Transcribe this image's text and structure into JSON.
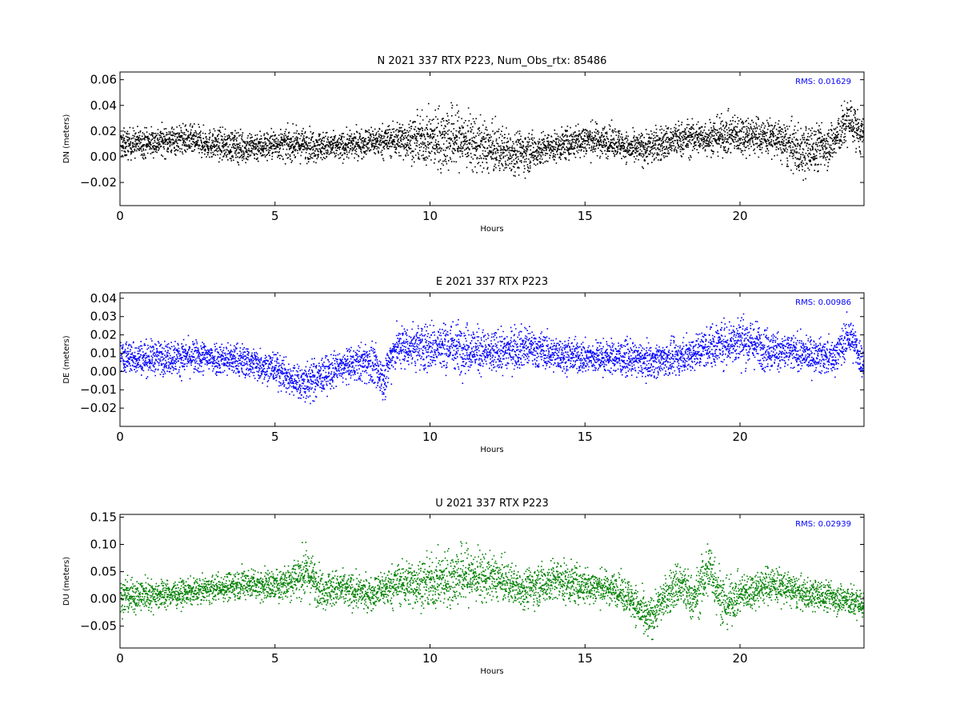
{
  "chart_data": [
    {
      "type": "scatter",
      "title": "N 2021 337 RTX  P223, Num_Obs_rtx: 85486",
      "xlabel": "Hours",
      "ylabel": "DN (meters)",
      "xlim": [
        0,
        24
      ],
      "ylim": [
        -0.038,
        0.066
      ],
      "xticks": [
        0,
        5,
        10,
        15,
        20
      ],
      "xtick_labels": [
        "0",
        "5",
        "10",
        "15",
        "20"
      ],
      "yticks": [
        -0.02,
        0.0,
        0.02,
        0.04,
        0.06
      ],
      "ytick_labels": [
        "−0.02",
        "0.00",
        "0.02",
        "0.04",
        "0.06"
      ],
      "color": "#000000",
      "annotation": "RMS:  0.01629",
      "annotation_color": "#0000ff",
      "legend": "none",
      "grid": false,
      "series": [
        {
          "x": [
            0,
            1,
            2,
            3,
            4,
            5,
            6,
            7,
            8,
            9,
            10,
            10.5,
            11,
            12,
            13,
            14,
            15,
            16,
            16.5,
            17,
            18,
            19,
            20,
            21,
            22,
            23,
            23.5,
            24
          ],
          "center": [
            0.01,
            0.012,
            0.014,
            0.01,
            0.008,
            0.01,
            0.01,
            0.008,
            0.012,
            0.014,
            0.014,
            0.015,
            0.014,
            0.006,
            0.004,
            0.008,
            0.014,
            0.012,
            0.006,
            0.008,
            0.014,
            0.016,
            0.018,
            0.016,
            0.004,
            0.012,
            0.03,
            0.014
          ],
          "spread": [
            0.01,
            0.01,
            0.01,
            0.01,
            0.011,
            0.01,
            0.011,
            0.009,
            0.01,
            0.012,
            0.018,
            0.024,
            0.02,
            0.016,
            0.014,
            0.01,
            0.012,
            0.01,
            0.01,
            0.012,
            0.012,
            0.012,
            0.014,
            0.012,
            0.018,
            0.014,
            0.016,
            0.012
          ]
        }
      ]
    },
    {
      "type": "scatter",
      "title": "E 2021 337 RTX  P223",
      "xlabel": "Hours",
      "ylabel": "DE (meters)",
      "xlim": [
        0,
        24
      ],
      "ylim": [
        -0.03,
        0.043
      ],
      "xticks": [
        0,
        5,
        10,
        15,
        20
      ],
      "xtick_labels": [
        "0",
        "5",
        "10",
        "15",
        "20"
      ],
      "yticks": [
        -0.02,
        -0.01,
        0.0,
        0.01,
        0.02,
        0.03,
        0.04
      ],
      "ytick_labels": [
        "−0.02",
        "−0.01",
        "0.00",
        "0.01",
        "0.02",
        "0.03",
        "0.04"
      ],
      "color": "#0000ff",
      "annotation": "RMS:  0.00986",
      "annotation_color": "#0000ff",
      "legend": "none",
      "grid": false,
      "series": [
        {
          "x": [
            0,
            1,
            2,
            3,
            4,
            5,
            5.5,
            6,
            7,
            7.5,
            8,
            8.5,
            8.8,
            9,
            10,
            11,
            12,
            13,
            14,
            15,
            16,
            17,
            18,
            19,
            20,
            21,
            22,
            23,
            23.5,
            24
          ],
          "center": [
            0.008,
            0.008,
            0.008,
            0.008,
            0.006,
            0.002,
            -0.004,
            -0.006,
            0.002,
            0.004,
            0.006,
            -0.004,
            0.012,
            0.014,
            0.014,
            0.014,
            0.01,
            0.014,
            0.01,
            0.008,
            0.008,
            0.006,
            0.008,
            0.014,
            0.018,
            0.012,
            0.01,
            0.008,
            0.02,
            0.004
          ],
          "spread": [
            0.008,
            0.008,
            0.008,
            0.008,
            0.008,
            0.008,
            0.008,
            0.01,
            0.008,
            0.008,
            0.01,
            0.01,
            0.01,
            0.01,
            0.012,
            0.012,
            0.01,
            0.01,
            0.008,
            0.008,
            0.008,
            0.008,
            0.008,
            0.01,
            0.012,
            0.01,
            0.008,
            0.008,
            0.01,
            0.008
          ]
        }
      ]
    },
    {
      "type": "scatter",
      "title": "U 2021 337 RTX  P223",
      "xlabel": "Hours",
      "ylabel": "DU (meters)",
      "xlim": [
        0,
        24
      ],
      "ylim": [
        -0.09,
        0.155
      ],
      "xticks": [
        0,
        5,
        10,
        15,
        20
      ],
      "xtick_labels": [
        "0",
        "5",
        "10",
        "15",
        "20"
      ],
      "yticks": [
        -0.05,
        0.0,
        0.05,
        0.1,
        0.15
      ],
      "ytick_labels": [
        "−0.05",
        "0.00",
        "0.05",
        "0.10",
        "0.15"
      ],
      "color": "#008000",
      "annotation": "RMS:  0.02939",
      "annotation_color": "#0000ff",
      "legend": "none",
      "grid": false,
      "series": [
        {
          "x": [
            0,
            1,
            2,
            3,
            4,
            5,
            6,
            6.5,
            7,
            8,
            9,
            10,
            11,
            12,
            13,
            14,
            15,
            16,
            16.5,
            17,
            17.5,
            18,
            18.5,
            19,
            19.5,
            20,
            21,
            22,
            23,
            24
          ],
          "center": [
            0.005,
            0.01,
            0.012,
            0.02,
            0.03,
            0.025,
            0.05,
            0.02,
            0.02,
            0.01,
            0.03,
            0.03,
            0.045,
            0.04,
            0.02,
            0.035,
            0.025,
            0.02,
            0.0,
            -0.04,
            0.0,
            0.03,
            0.0,
            0.06,
            -0.01,
            0.01,
            0.03,
            0.01,
            0.005,
            -0.01
          ],
          "spread": [
            0.03,
            0.025,
            0.02,
            0.02,
            0.025,
            0.025,
            0.04,
            0.03,
            0.03,
            0.025,
            0.035,
            0.04,
            0.05,
            0.035,
            0.03,
            0.035,
            0.03,
            0.025,
            0.03,
            0.035,
            0.03,
            0.04,
            0.035,
            0.05,
            0.04,
            0.03,
            0.03,
            0.025,
            0.025,
            0.025
          ]
        }
      ]
    }
  ]
}
